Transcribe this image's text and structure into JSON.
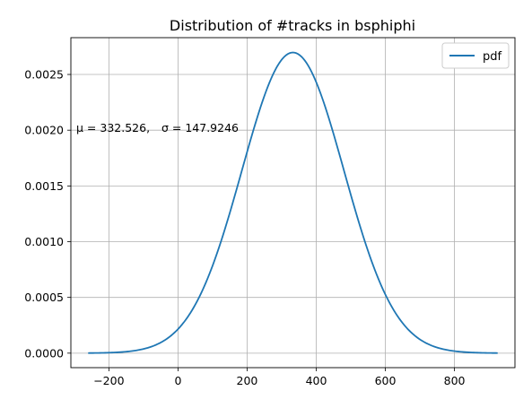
{
  "chart_data": {
    "type": "line",
    "title": "Distribution of #tracks in bsphiphi",
    "xlabel": "",
    "ylabel": "",
    "xlim": [
      -310,
      975
    ],
    "ylim": [
      -0.00013,
      0.00283
    ],
    "x_ticks": [
      -200,
      0,
      200,
      400,
      600,
      800
    ],
    "x_tick_labels": [
      "−200",
      "0",
      "200",
      "400",
      "600",
      "800"
    ],
    "y_ticks": [
      0.0,
      0.0005,
      0.001,
      0.0015,
      0.002,
      0.0025
    ],
    "y_tick_labels": [
      "0.0000",
      "0.0005",
      "0.0010",
      "0.0015",
      "0.0020",
      "0.0025"
    ],
    "grid": true,
    "legend_position": "top-right",
    "annotation": {
      "mu_label": "μ = 332.526,",
      "sigma_label": "σ = 147.9246"
    },
    "series": [
      {
        "name": "pdf",
        "color": "#1f77b4",
        "distribution": "normal",
        "mu": 332.526,
        "sigma": 147.9246,
        "x_range": [
          -260,
          925
        ]
      }
    ]
  }
}
